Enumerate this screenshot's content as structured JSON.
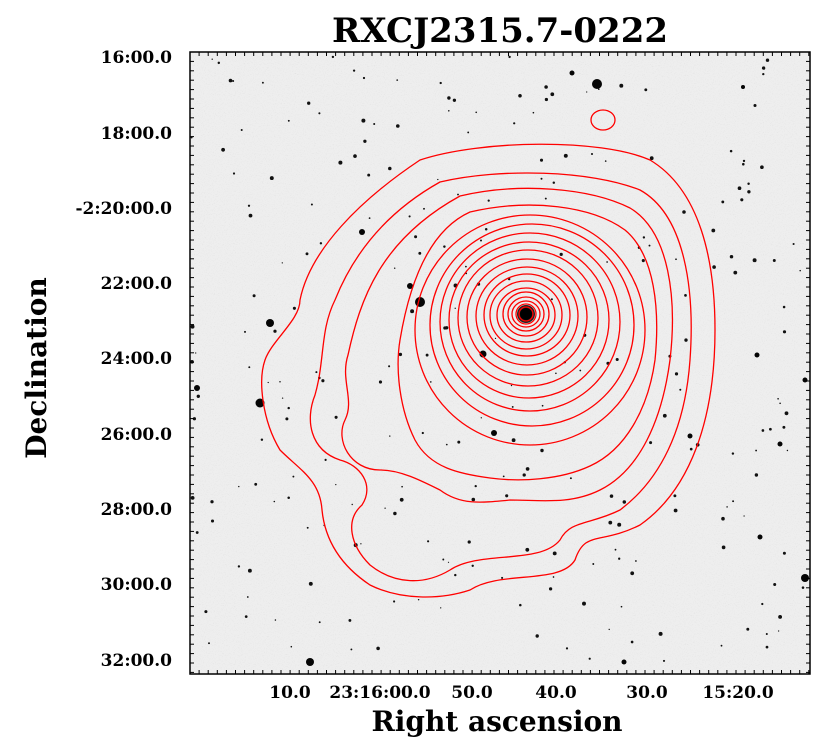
{
  "figure": {
    "title": "RXCJ2315.7-0222",
    "xlabel": "Right ascension",
    "ylabel": "Declination",
    "y_ticks": [
      "16:00.0",
      "18:00.0",
      "-2:20:00.0",
      "22:00.0",
      "24:00.0",
      "26:00.0",
      "28:00.0",
      "30:00.0",
      "32:00.0"
    ],
    "x_ticks": [
      "10.0",
      "23:16:00.0",
      "50.0",
      "40.0",
      "30.0",
      "15:20.0"
    ],
    "contour_color": "#ff0000",
    "image_style": "inverted greyscale optical image"
  }
}
